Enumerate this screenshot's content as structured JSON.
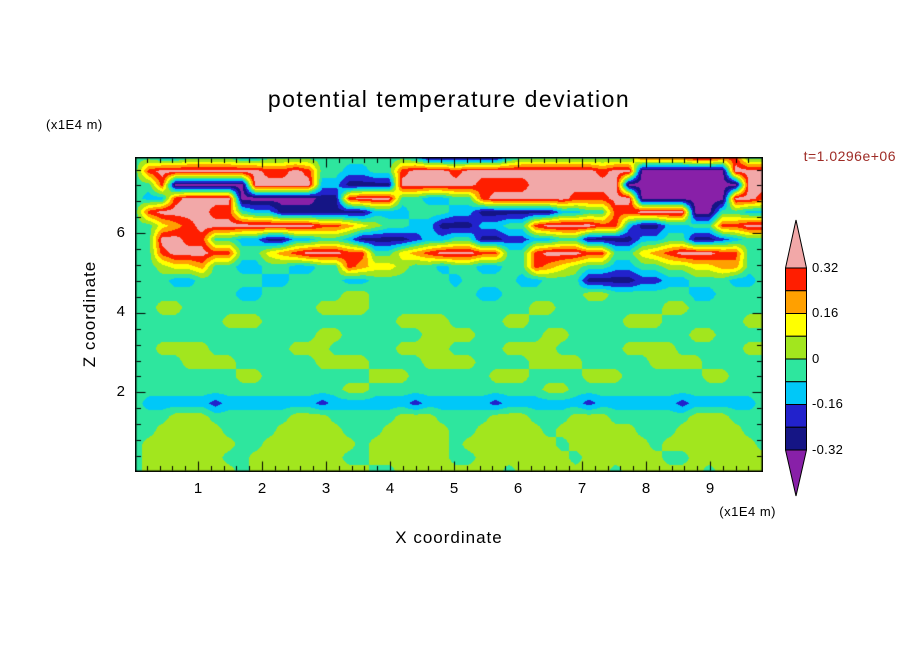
{
  "title": "potential temperature deviation",
  "time_label": "t=1.0296e+06",
  "colors": {
    "background": "#ffffff",
    "text": "#000000",
    "time_label": "#9e2b25"
  },
  "axes": {
    "x_label": "X coordinate",
    "x_unit": "(x1E4 m)",
    "y_label": "Z coordinate",
    "y_unit": "(x1E4 m)",
    "x_ticks": [
      "1",
      "2",
      "3",
      "4",
      "5",
      "6",
      "7",
      "8",
      "9"
    ],
    "y_ticks": [
      "2",
      "4",
      "6"
    ]
  },
  "colorbar": {
    "labels": [
      "0.32",
      "0.16",
      "0",
      "-0.16",
      "-0.32"
    ]
  },
  "chart_data": {
    "type": "heatmap",
    "title": "potential temperature deviation",
    "xlabel": "X coordinate (x1E4 m)",
    "ylabel": "Z coordinate (x1E4 m)",
    "time": "t=1.0296e+06",
    "x_range": [
      0,
      9.8
    ],
    "y_range": [
      0,
      7.9
    ],
    "x_tick_values": [
      1,
      2,
      3,
      4,
      5,
      6,
      7,
      8,
      9
    ],
    "y_tick_values": [
      2,
      4,
      6
    ],
    "level_edges": [
      -0.32,
      -0.24,
      -0.16,
      -0.08,
      0,
      0.08,
      0.16,
      0.24,
      0.32
    ],
    "colorbar_tick_values": [
      0.32,
      0.16,
      0,
      -0.16,
      -0.32
    ],
    "palette_low_to_high": [
      "#8820a8",
      "#151585",
      "#2222cc",
      "#00c8f8",
      "#2ee69e",
      "#a2e61e",
      "#ffff00",
      "#ffa000",
      "#ff1e00",
      "#f2a8a8"
    ],
    "grid_note": "Coarse 48x24 approximation of the filled-contour field; each digit is a level-bin index 0-9 mapped through palette_low_to_high (0 = below -0.32 purple, 4/5 straddle 0, 9 = above 0.32 pink). Rows run top (z=7.9e4 m) to bottom (z=0).",
    "grid_rows_top_to_bottom": [
      "443344443344444444444311111134444444448888998844",
      "489999999988984433448999899999999998990000000999",
      "448000000999993311119999998888999999900000000099",
      "433899990000001189994433448999999888990000000998",
      "489999884331111111333444331111113344889999004433",
      "446789999999998876544331113344899998831133448899",
      "449988443311334431111233441122334411113344112344",
      "448999884467899988446789998844899988446789998844",
      "445667443344334487665443443344876544334455667744",
      "444334444433444433444444344443344411112233444334",
      "444444443344444455444444443344444455444444334444",
      "445544444444445555444444444444554444444455444444",
      "444444455544444444445555444455444444455544444455",
      "444444444444445544444455554444455444444444554444",
      "445555444444555444445555444455554444455554444455",
      "444455554444445555444455554444555544444555544444",
      "444444445544444444555444444555444455544444455444",
      "444444444444444455444444444444455444444444444444",
      "433333233333332333333233333233333323333332333334",
      "444555444444555444445554444555444555444444555444",
      "445555544445555544455555445555545555554445555544",
      "455555554455555554555555455555554555555455555554",
      "455555544555555544555555445555555455555544555555",
      "455555554555555555445555555545555555455555545555"
    ]
  }
}
